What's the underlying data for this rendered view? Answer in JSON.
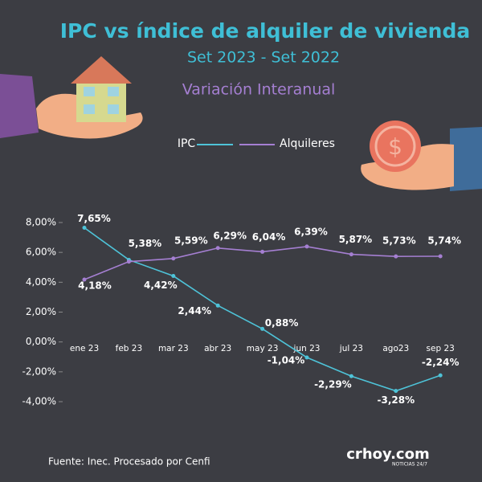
{
  "chart_data": {
    "type": "line",
    "title": "IPC vs índice de alquiler de vivienda",
    "subtitle": "Set 2023 - Set 2022",
    "annotation": "Variación Interanual",
    "source": "Fuente: Inec. Procesado por Cenfi",
    "logo": "crhoy.com",
    "logo_tagline": "NOTICIAS 24/7",
    "categories": [
      "ene 23",
      "feb 23",
      "mar 23",
      "abr 23",
      "may 23",
      "jun 23",
      "jul 23",
      "ago23",
      "sep 23"
    ],
    "series": [
      {
        "name": "IPC",
        "color": "#4ec3d8",
        "values": [
          7.65,
          5.5,
          4.42,
          2.44,
          0.88,
          -1.04,
          -2.29,
          -3.28,
          -2.24
        ],
        "value_labels": [
          "7,65%",
          null,
          "4,42%",
          "2,44%",
          "0,88%",
          "-1,04%",
          "-2,29%",
          "-3,28%",
          "-2,24%"
        ]
      },
      {
        "name": "Alquileres",
        "color": "#a57fd2",
        "values": [
          4.18,
          5.38,
          5.59,
          6.29,
          6.04,
          6.39,
          5.87,
          5.73,
          5.74
        ],
        "value_labels": [
          "4,18%",
          "5,38%",
          "5,59%",
          "6,29%",
          "6,04%",
          "6,39%",
          "5,87%",
          "5,73%",
          "5,74%"
        ]
      }
    ],
    "ylim": [
      -4,
      8
    ],
    "yticks": [
      {
        "value": 8,
        "label": "8,00%"
      },
      {
        "value": 6,
        "label": "6,00%"
      },
      {
        "value": 4,
        "label": "4,00%"
      },
      {
        "value": 2,
        "label": "2,00%"
      },
      {
        "value": 0,
        "label": "0,00%"
      },
      {
        "value": -2,
        "label": "-2,00%"
      },
      {
        "value": -4,
        "label": "-4,00%"
      }
    ],
    "grid": false
  }
}
